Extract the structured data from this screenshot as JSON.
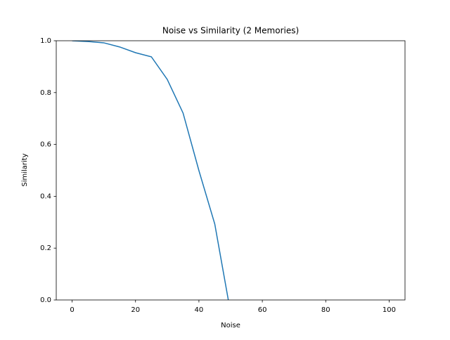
{
  "chart_data": {
    "type": "line",
    "title": "Noise vs Similarity (2 Memories)",
    "x_label": "Noise",
    "y_label": "Similarity",
    "x": [
      0,
      5,
      10,
      15,
      20,
      25,
      30,
      35,
      40,
      45,
      50,
      55,
      60,
      65,
      70,
      75,
      80,
      85,
      90,
      95,
      100
    ],
    "series": [
      {
        "name": "Similarity",
        "color": "#1f77b4",
        "values": [
          1.0,
          0.997,
          0.992,
          0.976,
          0.954,
          0.938,
          0.851,
          0.721,
          0.499,
          0.293,
          -0.05,
          -0.05,
          -0.05,
          -0.05,
          -0.05,
          -0.05,
          -0.05,
          -0.05,
          -0.05,
          -0.05,
          -0.05
        ]
      }
    ],
    "xlim": [
      -5,
      105
    ],
    "xticks": [
      0,
      20,
      40,
      60,
      80,
      100
    ],
    "ylim": [
      0,
      1
    ],
    "yticks": [
      {
        "value": 0,
        "label": "0.0"
      },
      {
        "value": 0.2,
        "label": "0.2"
      },
      {
        "value": 0.4,
        "label": "0.4"
      },
      {
        "value": 0.6,
        "label": "0.6"
      },
      {
        "value": 0.8,
        "label": "0.8"
      },
      {
        "value": 1,
        "label": "1.0"
      }
    ]
  }
}
